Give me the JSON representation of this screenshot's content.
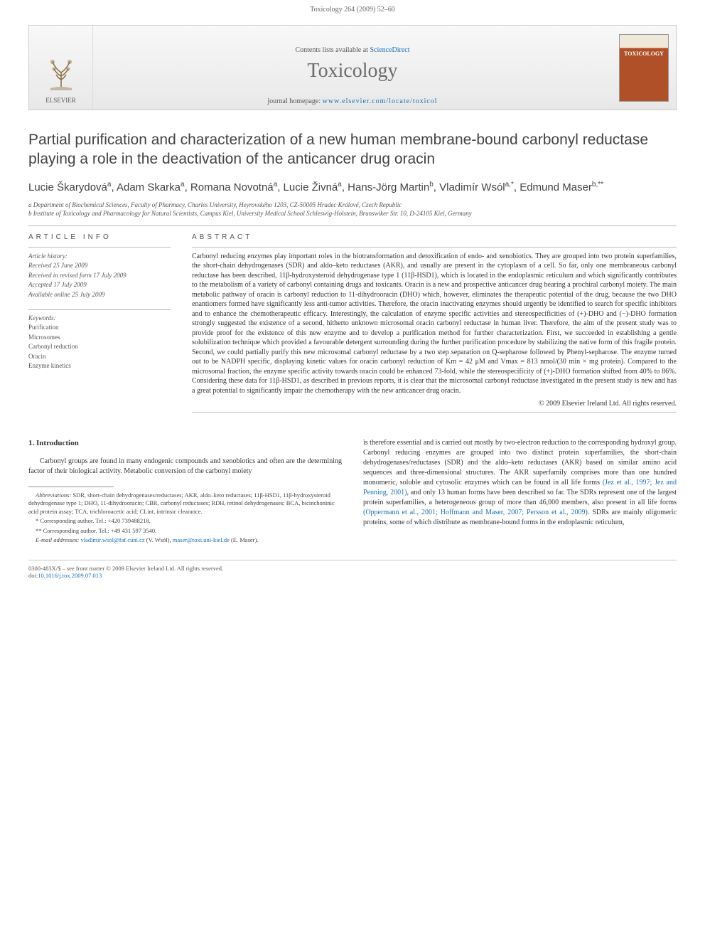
{
  "header": {
    "running_head": "Toxicology 264 (2009) 52–60"
  },
  "banner": {
    "publisher": "ELSEVIER",
    "contents_prefix": "Contents lists available at ",
    "contents_link": "ScienceDirect",
    "journal": "Toxicology",
    "homepage_prefix": "journal homepage: ",
    "homepage_url": "www.elsevier.com/locate/toxicol",
    "cover_label": "TOXICOLOGY"
  },
  "article": {
    "title": "Partial purification and characterization of a new human membrane-bound carbonyl reductase playing a role in the deactivation of the anticancer drug oracin",
    "authors_html": "Lucie Škarydová<sup>a</sup>, Adam Skarka<sup>a</sup>, Romana Novotná<sup>a</sup>, Lucie Živná<sup>a</sup>, Hans-Jörg Martin<sup>b</sup>, Vladimír Wsól<sup>a,*</sup>, Edmund Maser<sup>b,**</sup>",
    "affiliations": [
      "a Department of Biochemical Sciences, Faculty of Pharmacy, Charles University, Heyrovského 1203, CZ-50005 Hradec Králové, Czech Republic",
      "b Institute of Toxicology and Pharmacology for Natural Scientists, Campus Kiel, University Medical School Schleswig-Holstein, Brunswiker Str. 10, D-24105 Kiel, Germany"
    ]
  },
  "info": {
    "heading": "ARTICLE INFO",
    "history_label": "Article history:",
    "history": [
      "Received 25 June 2009",
      "Received in revised form 17 July 2009",
      "Accepted 17 July 2009",
      "Available online 25 July 2009"
    ],
    "keywords_label": "Keywords:",
    "keywords": [
      "Purification",
      "Microsomes",
      "Carbonyl reduction",
      "Oracin",
      "Enzyme kinetics"
    ]
  },
  "abstract": {
    "heading": "ABSTRACT",
    "text": "Carbonyl reducing enzymes play important roles in the biotransformation and detoxification of endo- and xenobiotics. They are grouped into two protein superfamilies, the short-chain dehydrogenases (SDR) and aldo–keto reductases (AKR), and usually are present in the cytoplasm of a cell. So far, only one membraneous carbonyl reductase has been described, 11β-hydroxysteroid dehydrogenase type 1 (11β-HSD1), which is located in the endoplasmic reticulum and which significantly contributes to the metabolism of a variety of carbonyl containing drugs and toxicants. Oracin is a new and prospective anticancer drug bearing a prochiral carbonyl moiety. The main metabolic pathway of oracin is carbonyl reduction to 11-dihydrooracin (DHO) which, however, eliminates the therapeutic potential of the drug, because the two DHO enantiomers formed have significantly less anti-tumor activities. Therefore, the oracin inactivating enzymes should urgently be identified to search for specific inhibitors and to enhance the chemotherapeutic efficacy. Interestingly, the calculation of enzyme specific activities and stereospecificities of (+)-DHO and (−)-DHO formation strongly suggested the existence of a second, hitherto unknown microsomal oracin carbonyl reductase in human liver. Therefore, the aim of the present study was to provide proof for the existence of this new enzyme and to develop a purification method for further characterization. First, we succeeded in establishing a gentle solubilization technique which provided a favourable detergent surrounding during the further purification procedure by stabilizing the native form of this fragile protein. Second, we could partially purify this new microsomal carbonyl reductase by a two step separation on Q-sepharose followed by Phenyl-sepharose. The enzyme turned out to be NADPH specific, displaying kinetic values for oracin carbonyl reduction of Km = 42 μM and Vmax = 813 nmol/(30 min × mg protein). Compared to the microsomal fraction, the enzyme specific activity towards oracin could be enhanced 73-fold, while the stereospecificity of (+)-DHO formation shifted from 40% to 86%. Considering these data for 11β-HSD1, as described in previous reports, it is clear that the microsomal carbonyl reductase investigated in the present study is new and has a great potential to significantly impair the chemotherapy with the new anticancer drug oracin.",
    "copyright": "© 2009 Elsevier Ireland Ltd. All rights reserved."
  },
  "body": {
    "section_heading": "1. Introduction",
    "left_para": "Carbonyl groups are found in many endogenic compounds and xenobiotics and often are the determining factor of their biological activity. Metabolic conversion of the carbonyl moiety",
    "right_para_1": "is therefore essential and is carried out mostly by two-electron reduction to the corresponding hydroxyl group. Carbonyl reducing enzymes are grouped into two distinct protein superfamilies, the short-chain dehydrogenases/reductases (SDR) and the aldo–keto reductases (AKR) based on similar amino acid sequences and three-dimensional structures. The AKR superfamily comprises more than one hundred monomeric, soluble and cytosolic enzymes which can be found in all life forms ",
    "right_ref_1": "(Jez et al., 1997; Jez and Penning, 2001)",
    "right_para_2": ", and only 13 human forms have been described so far. The SDRs represent one of the largest protein superfamilies, a heterogeneous group of more than 46,000 members, also present in all life forms ",
    "right_ref_2": "(Oppermann et al., 2001; Hoffmann and Maser, 2007; Persson et al., 2009)",
    "right_para_3": ". SDRs are mainly oligomeric proteins, some of which distribute as membrane-bound forms in the endoplasmic reticulum,"
  },
  "footnotes": {
    "abbrev_label": "Abbreviations:",
    "abbrev_text": " SDR, short-chain dehydrogenases/reductases; AKR, aldo–keto reductases; 11β-HSD1, 11β-hydroxysteroid dehydrogenase type 1; DHO, 11-dihydrooracin; CBR, carbonyl reductases; RDH, retinol dehydrogenases; BCA, bicinchoninic acid protein assay; TCA, trichloroacetic acid; CLint, intrinsic clearance.",
    "corr1": "* Corresponding author. Tel.: +420 739488218.",
    "corr2": "** Corresponding author. Tel.: +49 431 597 3540.",
    "email_label": "E-mail addresses:",
    "email1": "vladimir.wsol@faf.cuni.cz",
    "email1_name": " (V. Wsól), ",
    "email2": "maser@toxi.uni-kiel.de",
    "email2_name": " (E. Maser)."
  },
  "footer": {
    "line1": "0300-483X/$ – see front matter © 2009 Elsevier Ireland Ltd. All rights reserved.",
    "doi_prefix": "doi:",
    "doi": "10.1016/j.tox.2009.07.013"
  },
  "colors": {
    "link": "#1a6fb5",
    "text": "#333333",
    "muted": "#555555",
    "border": "#cccccc",
    "cover_top": "#f0e8d8",
    "cover_body": "#b05028"
  },
  "typography": {
    "title_fontsize": 21,
    "authors_fontsize": 15,
    "body_fontsize": 10,
    "footnote_fontsize": 8.5,
    "journal_fontsize": 28
  }
}
